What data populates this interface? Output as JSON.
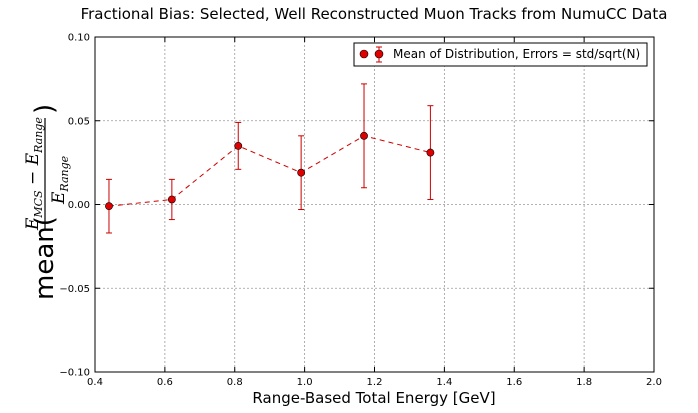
{
  "chart_data": {
    "type": "line",
    "title": "Fractional Bias: Selected, Well Reconstructed Muon Tracks from NumuCC Data",
    "xlabel": "Range-Based Total Energy [GeV]",
    "ylabel": {
      "prefix": "mean(",
      "suffix": ")",
      "numerator_main": "E",
      "numerator_sub1": "MCS",
      "numerator_minus": " − ",
      "numerator_main2": "E",
      "numerator_sub2": "Range",
      "denominator_main": "E",
      "denominator_sub": "Range"
    },
    "xlim": [
      0.4,
      2.0
    ],
    "ylim": [
      -0.1,
      0.1
    ],
    "xticks": [
      0.4,
      0.6,
      0.8,
      1.0,
      1.2,
      1.4,
      1.6,
      1.8,
      2.0
    ],
    "xtick_labels": [
      "0.4",
      "0.6",
      "0.8",
      "1.0",
      "1.2",
      "1.4",
      "1.6",
      "1.8",
      "2.0"
    ],
    "yticks": [
      -0.1,
      -0.05,
      0.0,
      0.05,
      0.1
    ],
    "ytick_labels": [
      "−0.10",
      "−0.05",
      "0.00",
      "0.05",
      "0.10"
    ],
    "grid": true,
    "legend_position": "top-right",
    "series": [
      {
        "name": "Mean of Distribution, Errors = std/sqrt(N)",
        "color": "#cc0000",
        "marker_color": "#e00000",
        "x": [
          0.44,
          0.62,
          0.81,
          0.99,
          1.17,
          1.36
        ],
        "y": [
          -0.001,
          0.003,
          0.035,
          0.019,
          0.041,
          0.031
        ],
        "err": [
          0.016,
          0.012,
          0.014,
          0.022,
          0.031,
          0.028
        ]
      }
    ]
  }
}
